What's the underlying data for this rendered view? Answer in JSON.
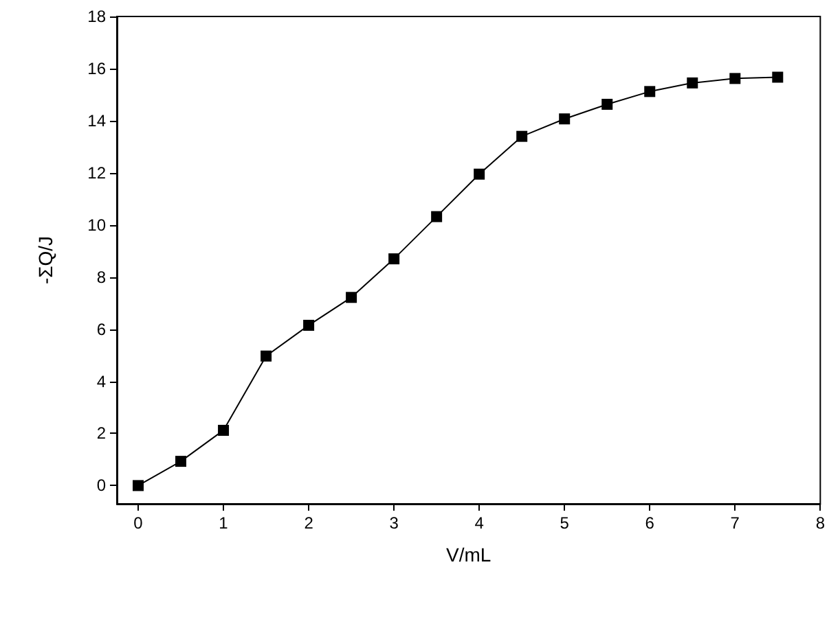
{
  "chart_data": {
    "type": "line",
    "xlabel": "V/mL",
    "ylabel": "-ΣQ/J",
    "x": [
      0,
      0.5,
      1,
      1.5,
      2,
      2.5,
      3,
      3.5,
      4,
      4.5,
      5,
      5.5,
      6,
      6.5,
      7,
      7.5
    ],
    "series": [
      {
        "color": "#000000",
        "values": [
          0,
          0.93,
          2.12,
          4.97,
          6.15,
          7.22,
          8.7,
          10.32,
          11.95,
          13.4,
          14.07,
          14.63,
          15.12,
          15.45,
          15.62,
          15.67
        ]
      }
    ],
    "xlim": [
      -0.25,
      8
    ],
    "xticks": [
      0,
      1,
      2,
      3,
      4,
      5,
      6,
      7,
      8
    ],
    "ylim": [
      -0.7,
      18
    ],
    "yticks": [
      0,
      2,
      4,
      6,
      8,
      10,
      12,
      14,
      16,
      18
    ],
    "marker": "square",
    "line_style": "solid"
  }
}
